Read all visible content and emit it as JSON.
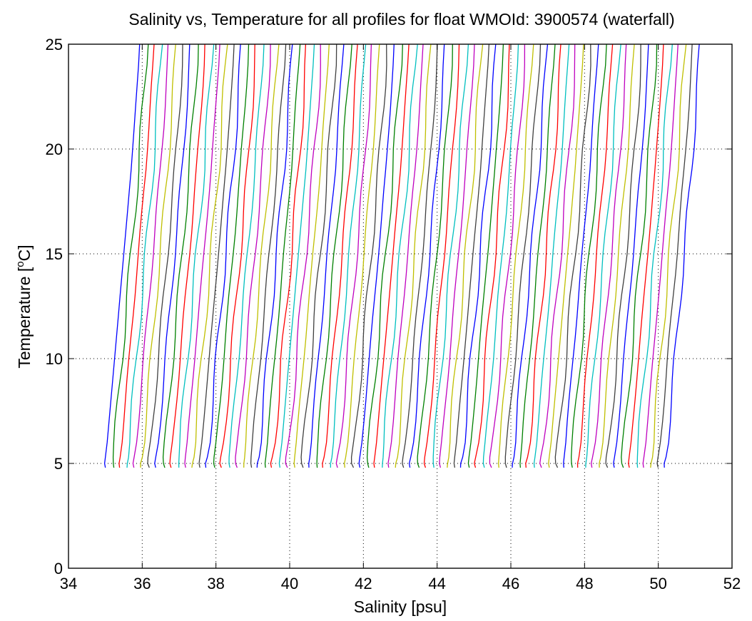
{
  "chart_data": {
    "type": "line",
    "title": "Salinity vs, Temperature for all profiles for float WMOId: 3900574 (waterfall)",
    "xlabel": "Salinity [psu]",
    "ylabel_main": "Temperature [",
    "ylabel_sup": "o",
    "ylabel_end": "C]",
    "xlim": [
      34,
      52
    ],
    "ylim": [
      0,
      25
    ],
    "xticks": [
      34,
      36,
      38,
      40,
      42,
      44,
      46,
      48,
      50,
      52
    ],
    "yticks": [
      0,
      5,
      10,
      15,
      20,
      25
    ],
    "grid": true,
    "colors": [
      "#0000ff",
      "#008000",
      "#ff0000",
      "#00bfbf",
      "#bf00bf",
      "#bfbf00",
      "#404040"
    ],
    "profile_shape": {
      "temperature": [
        4.8,
        5.0,
        5.3,
        6.0,
        7.0,
        8.0,
        9.0,
        10.0,
        11.0,
        12.0,
        13.0,
        14.0,
        15.0,
        16.0,
        17.0,
        18.0,
        19.0,
        20.0,
        21.0,
        22.0,
        23.0,
        24.0,
        25.0
      ],
      "salinity_offset": [
        0.0,
        -0.02,
        0.0,
        0.05,
        0.1,
        0.15,
        0.2,
        0.25,
        0.3,
        0.35,
        0.4,
        0.45,
        0.5,
        0.55,
        0.6,
        0.65,
        0.7,
        0.74,
        0.78,
        0.82,
        0.86,
        0.9,
        0.93
      ]
    },
    "profiles": {
      "count": 78,
      "first_base_salinity": 35.0,
      "last_base_salinity": 50.2
    }
  }
}
